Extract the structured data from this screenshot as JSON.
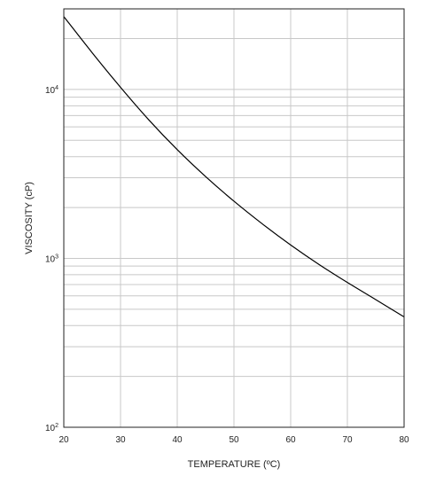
{
  "chart_data": {
    "type": "line",
    "title": "",
    "xlabel": "TEMPERATURE (ºC)",
    "ylabel": "VISCOSITY (cP)",
    "xlim": [
      20,
      80
    ],
    "ylim": [
      100,
      30000
    ],
    "yscale": "log",
    "grid": true,
    "x_ticks": [
      20,
      30,
      40,
      50,
      60,
      70,
      80
    ],
    "y_tick_labels": [
      {
        "value": 100,
        "base": "10",
        "exp": "2"
      },
      {
        "value": 1000,
        "base": "10",
        "exp": "3"
      },
      {
        "value": 10000,
        "base": "10",
        "exp": "4"
      }
    ],
    "series": [
      {
        "color": "#000000",
        "x": [
          20,
          25,
          30,
          35,
          40,
          45,
          50,
          55,
          60,
          65,
          70,
          75,
          80
        ],
        "y": [
          27000,
          16500,
          10300,
          6600,
          4400,
          3050,
          2180,
          1600,
          1200,
          920,
          720,
          570,
          450
        ]
      }
    ]
  },
  "colors": {
    "grid": "#c8c8c8",
    "axis": "#222222",
    "line": "#000000"
  }
}
